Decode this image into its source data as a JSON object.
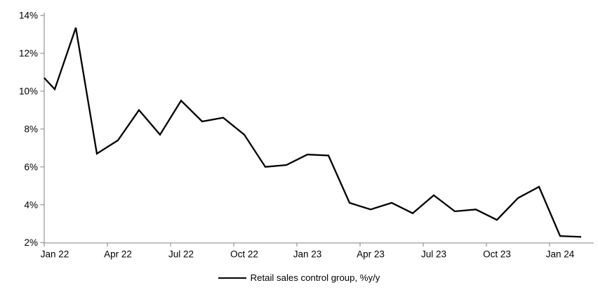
{
  "chart_data": {
    "type": "line",
    "title": "",
    "legend_label": "Retail sales control group, %y/y",
    "legend_position": "bottom-center",
    "grid": "off",
    "categories": [
      "Jan 22",
      "Feb 22",
      "Mar 22",
      "Apr 22",
      "May 22",
      "Jun 22",
      "Jul 22",
      "Aug 22",
      "Sep 22",
      "Oct 22",
      "Nov 22",
      "Dec 22",
      "Jan 23",
      "Feb 23",
      "Mar 23",
      "Apr 23",
      "May 23",
      "Jun 23",
      "Jul 23",
      "Aug 23",
      "Sep 23",
      "Oct 23",
      "Nov 23",
      "Dec 23",
      "Jan 24",
      "Feb 24"
    ],
    "series": [
      {
        "name": "Retail sales control group, %y/y",
        "values": [
          10.1,
          13.35,
          6.7,
          7.4,
          9.0,
          7.7,
          9.5,
          8.4,
          8.6,
          7.7,
          6.0,
          6.1,
          6.65,
          6.6,
          4.1,
          3.75,
          4.1,
          3.55,
          4.5,
          3.65,
          3.75,
          3.2,
          4.35,
          4.95,
          2.35,
          2.3
        ]
      }
    ],
    "edge_start_value": 10.7,
    "ylim": [
      2,
      14
    ],
    "y_tick_step": 2,
    "y_tick_labels": [
      "2%",
      "4%",
      "6%",
      "8%",
      "10%",
      "12%",
      "14%"
    ],
    "x_tick_labels_shown": [
      "Jan 22",
      "Apr 22",
      "Jul 22",
      "Oct 22",
      "Jan 23",
      "Apr 23",
      "Jul 23",
      "Oct 23",
      "Jan 24"
    ],
    "x_label_every_n_months": 3,
    "xlabel": "",
    "ylabel": "",
    "colors": {
      "line": "#000000",
      "axis": "#9b9b9b",
      "text": "#000000",
      "background": "#ffffff"
    }
  }
}
